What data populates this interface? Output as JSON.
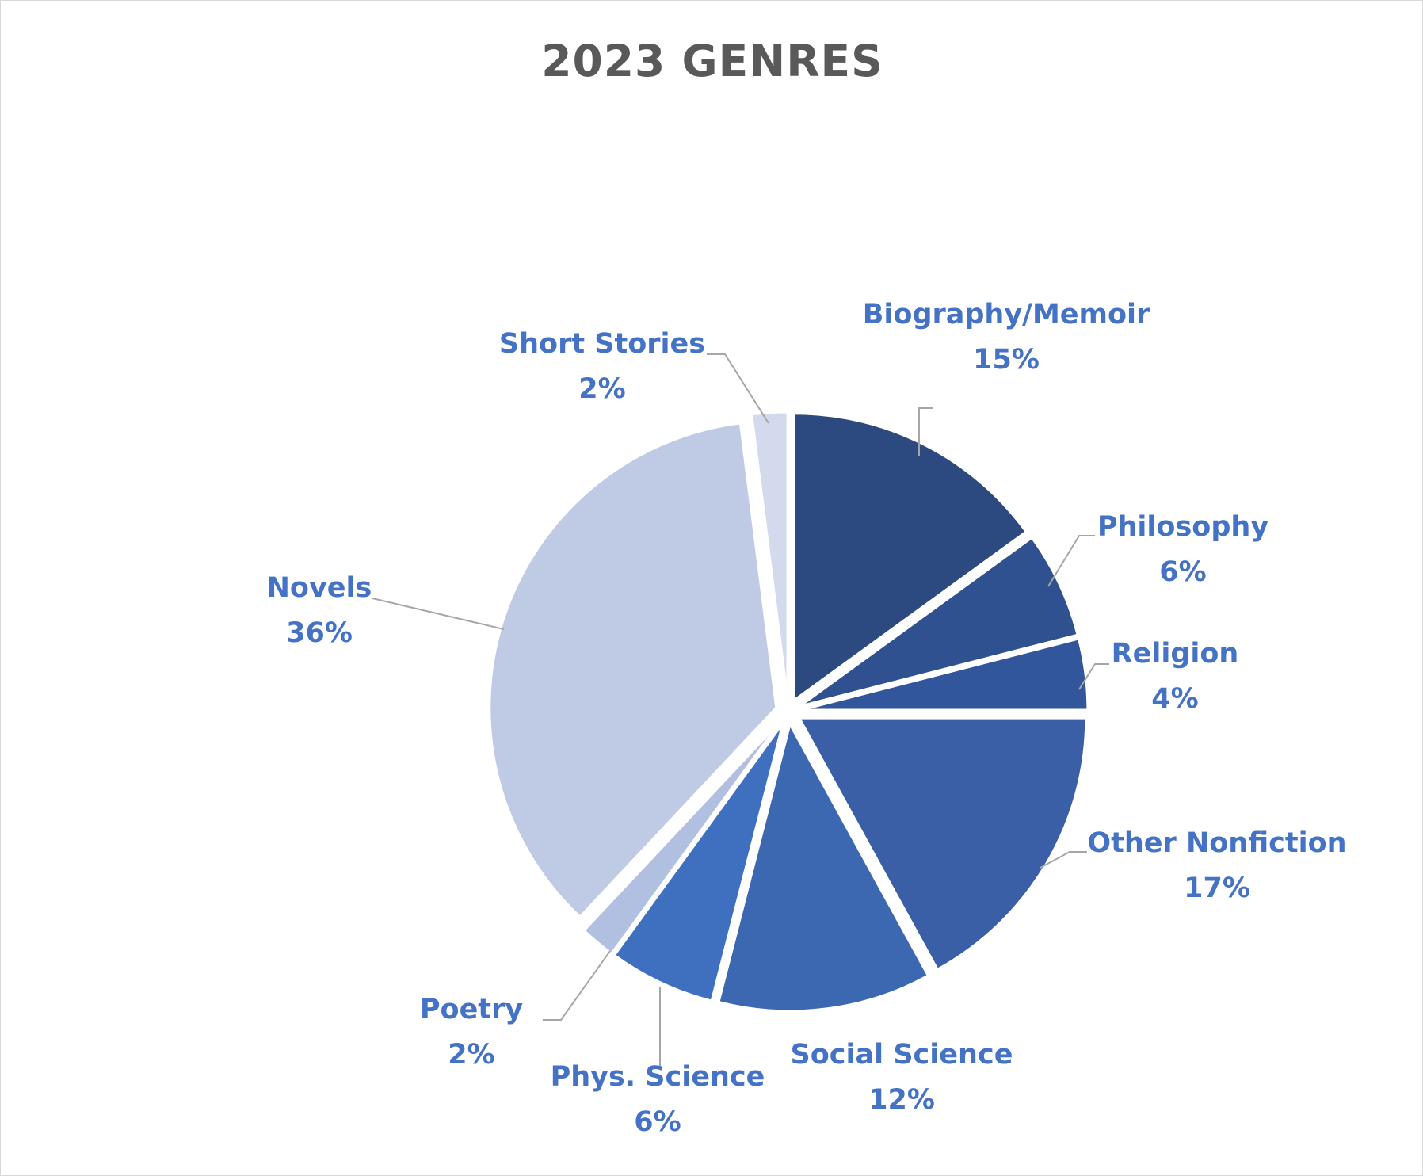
{
  "chart_data": {
    "type": "pie",
    "title": "2023 GENRES",
    "start_angle_deg": 0,
    "direction": "clockwise",
    "exploded": true,
    "slices": [
      {
        "label": "Biography/Memoir",
        "value": 15,
        "pct_label": "15%",
        "color": "#2c4a80"
      },
      {
        "label": "Philosophy",
        "value": 6,
        "pct_label": "6%",
        "color": "#2f5190"
      },
      {
        "label": "Religion",
        "value": 4,
        "pct_label": "4%",
        "color": "#32569c"
      },
      {
        "label": "Other Nonfiction",
        "value": 17,
        "pct_label": "17%",
        "color": "#3a5fa6"
      },
      {
        "label": "Social Science",
        "value": 12,
        "pct_label": "12%",
        "color": "#3c68b2"
      },
      {
        "label": "Phys. Science",
        "value": 6,
        "pct_label": "6%",
        "color": "#3f70c0"
      },
      {
        "label": "Poetry",
        "value": 2,
        "pct_label": "2%",
        "color": "#b1bfe0"
      },
      {
        "label": "Novels",
        "value": 36,
        "pct_label": "36%",
        "color": "#bfcae5"
      },
      {
        "label": "Short Stories",
        "value": 2,
        "pct_label": "2%",
        "color": "#d3daed"
      }
    ]
  }
}
